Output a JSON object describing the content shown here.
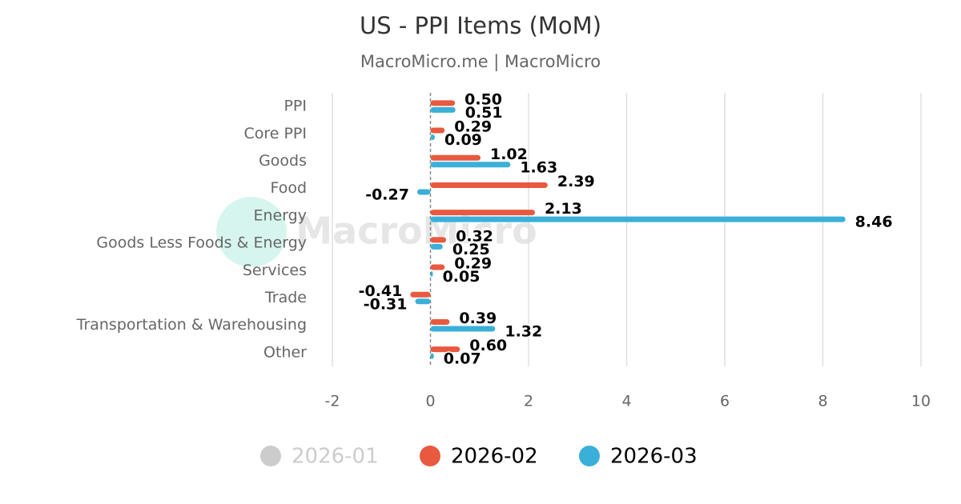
{
  "chart_data": {
    "type": "hbar",
    "title": "US - PPI Items (MoM)",
    "subtitle": "MacroMicro.me | MacroMicro",
    "watermark": "MacroMicro",
    "categories": [
      "PPI",
      "Core PPI",
      "Goods",
      "Food",
      "Energy",
      "Goods Less Foods & Energy",
      "Services",
      "Trade",
      "Transportation & Warehousing",
      "Other"
    ],
    "series": [
      {
        "name": "2026-01",
        "color": "#cccccc",
        "visible": false,
        "values": [
          null,
          null,
          null,
          null,
          null,
          null,
          null,
          null,
          null,
          null
        ]
      },
      {
        "name": "2026-02",
        "color": "#e8593f",
        "visible": true,
        "values": [
          0.5,
          0.29,
          1.02,
          2.39,
          2.13,
          0.32,
          0.29,
          -0.41,
          0.39,
          0.6
        ],
        "value_labels": [
          "0.50",
          "0.29",
          "1.02",
          "2.39",
          "2.13",
          "0.32",
          "0.29",
          "-0.41",
          "0.39",
          "0.60"
        ]
      },
      {
        "name": "2026-03",
        "color": "#3ab0d9",
        "visible": true,
        "values": [
          0.51,
          0.09,
          1.63,
          -0.27,
          8.46,
          0.25,
          0.05,
          -0.31,
          1.32,
          0.07
        ],
        "value_labels": [
          "0.51",
          "0.09",
          "1.63",
          "-0.27",
          "8.46",
          "0.25",
          "0.05",
          "-0.31",
          "1.32",
          "0.07"
        ]
      }
    ],
    "xlim": [
      -2,
      10
    ],
    "xticks": [
      -2,
      0,
      2,
      4,
      6,
      8,
      10
    ],
    "grid": true
  }
}
